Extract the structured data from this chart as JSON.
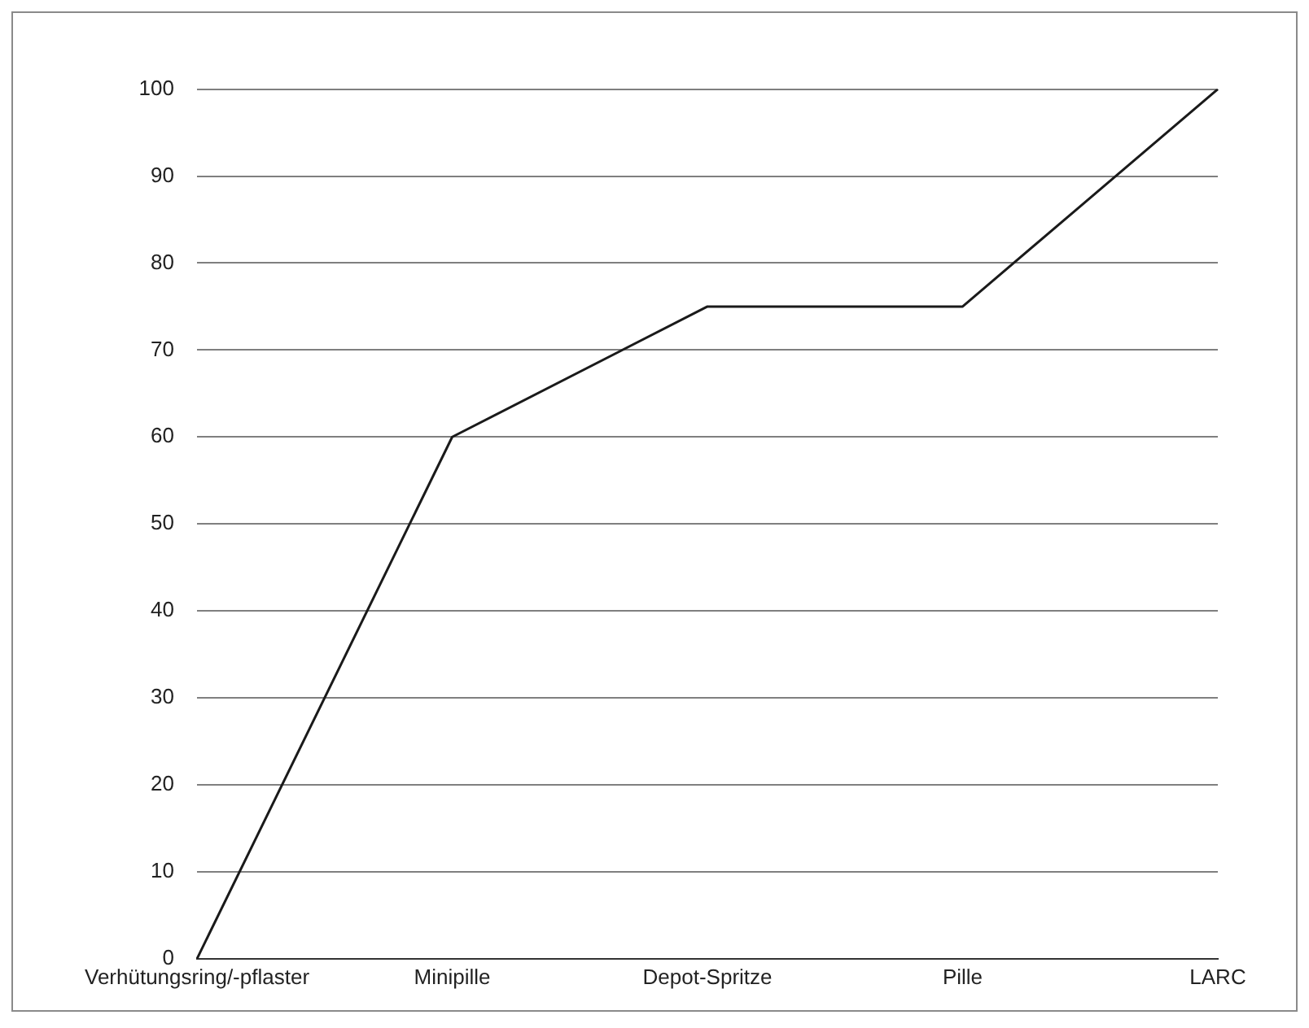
{
  "chart_data": {
    "type": "line",
    "categories": [
      "Verhütungsring/-pflaster",
      "Minipille",
      "Depot-Spritze",
      "Pille",
      "LARC"
    ],
    "series": [
      {
        "color": "#1a1a1a",
        "values": [
          0,
          60,
          75,
          75,
          100
        ]
      }
    ],
    "ylim": [
      0,
      100
    ],
    "yticks": [
      0,
      10,
      20,
      30,
      40,
      50,
      60,
      70,
      80,
      90,
      100
    ],
    "grid": "y",
    "legend": false,
    "marker": "none"
  }
}
